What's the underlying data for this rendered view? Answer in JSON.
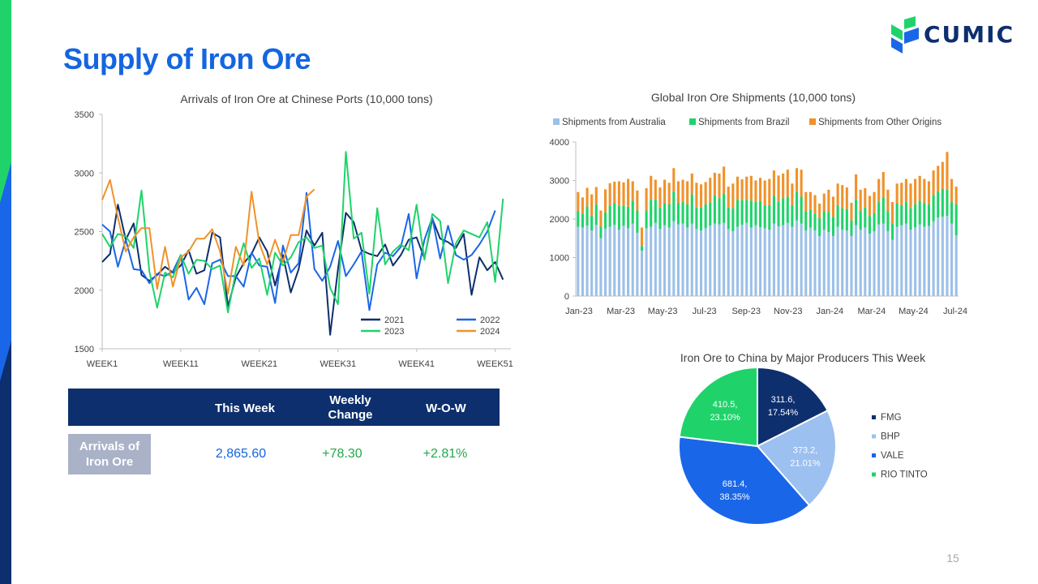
{
  "page": {
    "title": "Supply of Iron Ore",
    "logo_text": "CUMIC",
    "page_number": "15",
    "accent_colors": [
      "#1fd36a",
      "#1a66e8",
      "#0d2f6e"
    ]
  },
  "kpi_table": {
    "headers": [
      "This Week",
      "Weekly Change",
      "W-O-W"
    ],
    "row_label": "Arrivals of Iron Ore",
    "values": [
      "2,865.60",
      "+78.30",
      "+2.81%"
    ],
    "value_colors": [
      "#1565e0",
      "#22a94a",
      "#22a94a"
    ],
    "header_bg": "#0d2f6e",
    "row_label_bg": "#aab2c8"
  },
  "chart_data": [
    {
      "type": "line",
      "title": "Arrivals of Iron Ore at Chinese Ports (10,000 tons)",
      "xlabel": "",
      "ylabel": "",
      "x_tick_labels": [
        "WEEK1",
        "WEEK11",
        "WEEK21",
        "WEEK31",
        "WEEK41",
        "WEEK51"
      ],
      "x_tick_positions": [
        1,
        11,
        21,
        31,
        41,
        51
      ],
      "xlim": [
        1,
        53
      ],
      "ylim": [
        1500,
        3500
      ],
      "y_ticks": [
        1500,
        2000,
        2500,
        3000,
        3500
      ],
      "legend_position": "bottom-right",
      "grid": false,
      "series": [
        {
          "name": "2021",
          "color": "#0d2f6e",
          "values": [
            2240,
            2310,
            2730,
            2430,
            2570,
            2130,
            2080,
            2130,
            2200,
            2150,
            2210,
            2340,
            2140,
            2170,
            2490,
            2450,
            1860,
            2110,
            2230,
            2310,
            2450,
            2330,
            2040,
            2300,
            1980,
            2180,
            2510,
            2380,
            2490,
            1620,
            2180,
            2660,
            2580,
            2340,
            2310,
            2290,
            2390,
            2210,
            2300,
            2430,
            2450,
            2270,
            2610,
            2440,
            2410,
            2360,
            2480,
            1960,
            2280,
            2170,
            2240,
            2090
          ]
        },
        {
          "name": "2022",
          "color": "#1a66e8",
          "values": [
            2560,
            2500,
            2200,
            2430,
            2180,
            2170,
            2060,
            2140,
            2120,
            2160,
            2300,
            1920,
            2020,
            1880,
            2230,
            2260,
            2120,
            2120,
            2030,
            2320,
            2210,
            2200,
            1890,
            2380,
            2150,
            2230,
            2830,
            2180,
            2080,
            2200,
            2420,
            2120,
            2220,
            2330,
            1830,
            2220,
            2320,
            2290,
            2370,
            2650,
            2100,
            2430,
            2620,
            2270,
            2550,
            2300,
            2260,
            2300,
            2390,
            2500,
            2680
          ]
        },
        {
          "name": "2023",
          "color": "#1fd36a",
          "values": [
            2480,
            2370,
            2480,
            2460,
            2360,
            2850,
            2160,
            1850,
            2150,
            2110,
            2300,
            2140,
            2260,
            2250,
            2180,
            2210,
            1810,
            2160,
            2400,
            2190,
            2270,
            1960,
            2320,
            2210,
            2280,
            2410,
            2450,
            2360,
            2380,
            2020,
            1880,
            3180,
            2440,
            2490,
            1970,
            2700,
            2220,
            2330,
            2390,
            2340,
            2730,
            2260,
            2650,
            2590,
            2060,
            2400,
            2510,
            2480,
            2450,
            2580,
            2070,
            2780
          ]
        },
        {
          "name": "2024",
          "color": "#f0922a",
          "values": [
            2770,
            2940,
            2620,
            2330,
            2450,
            2530,
            2530,
            2010,
            2370,
            2030,
            2280,
            2330,
            2440,
            2440,
            2520,
            2330,
            1970,
            2370,
            2210,
            2840,
            2400,
            2220,
            2430,
            2240,
            2470,
            2470,
            2800,
            2860
          ]
        }
      ]
    },
    {
      "type": "bar",
      "stacked": true,
      "title": "Global Iron Ore Shipments (10,000 tons)",
      "xlabel": "",
      "ylabel": "",
      "x_tick_labels": [
        "Jan-23",
        "Mar-23",
        "May-23",
        "Jul-23",
        "Sep-23",
        "Nov-23",
        "Jan-24",
        "Mar-24",
        "May-24",
        "Jul-24"
      ],
      "ylim": [
        0,
        4000
      ],
      "y_ticks": [
        0,
        1000,
        2000,
        3000,
        4000
      ],
      "legend_position": "top",
      "grid": false,
      "series": [
        {
          "name": "Shipments from Australia",
          "color": "#9cc0e8",
          "values": [
            1800,
            1780,
            1830,
            1700,
            1850,
            1500,
            1750,
            1800,
            1850,
            1720,
            1830,
            1760,
            1880,
            1640,
            1180,
            1760,
            1800,
            1900,
            1740,
            1840,
            1780,
            1940,
            1860,
            1880,
            1780,
            1880,
            1740,
            1700,
            1760,
            1830,
            1880,
            1860,
            1900,
            1740,
            1680,
            1800,
            1850,
            1900,
            1780,
            1840,
            1790,
            1760,
            1720,
            1880,
            1810,
            1840,
            1900,
            1800,
            1960,
            1880,
            1700,
            1780,
            1700,
            1560,
            1720,
            1660,
            1560,
            1800,
            1720,
            1700,
            1560,
            1840,
            1720,
            1780,
            1620,
            1680,
            1860,
            1880,
            1680,
            1460,
            1800,
            1840,
            1880,
            1720,
            1780,
            1860,
            1800,
            1820,
            1940,
            2040,
            2060,
            2080,
            1880,
            1580
          ]
        },
        {
          "name": "Shipments from Brazil",
          "color": "#1fd36a",
          "values": [
            400,
            360,
            500,
            380,
            520,
            300,
            420,
            550,
            560,
            620,
            520,
            560,
            600,
            580,
            120,
            460,
            700,
            600,
            560,
            560,
            600,
            780,
            560,
            560,
            600,
            760,
            560,
            600,
            620,
            600,
            720,
            680,
            760,
            560,
            600,
            700,
            640,
            600,
            700,
            600,
            680,
            600,
            640,
            720,
            640,
            700,
            680,
            560,
            740,
            700,
            500,
            460,
            440,
            460,
            480,
            520,
            500,
            560,
            560,
            560,
            400,
            660,
            480,
            520,
            460,
            480,
            580,
            680,
            520,
            420,
            600,
            520,
            560,
            560,
            600,
            620,
            620,
            560,
            680,
            680,
            720,
            680,
            560,
            800
          ]
        },
        {
          "name": "Shipments from Other Origins",
          "color": "#f0922a",
          "values": [
            500,
            420,
            480,
            560,
            460,
            420,
            600,
            580,
            560,
            640,
            600,
            720,
            500,
            520,
            480,
            580,
            620,
            520,
            520,
            620,
            560,
            600,
            560,
            580,
            600,
            540,
            640,
            600,
            580,
            640,
            600,
            640,
            700,
            540,
            640,
            600,
            540,
            600,
            640,
            560,
            600,
            640,
            680,
            660,
            680,
            640,
            700,
            560,
            620,
            700,
            500,
            460,
            480,
            380,
            460,
            580,
            520,
            560,
            600,
            560,
            460,
            660,
            560,
            500,
            520,
            540,
            600,
            660,
            560,
            560,
            520,
            580,
            600,
            640,
            660,
            640,
            620,
            600,
            640,
            660,
            700,
            980,
            600,
            460
          ]
        }
      ]
    },
    {
      "type": "pie",
      "title": "Iron Ore to China by Major Producers This Week",
      "legend_position": "right",
      "slices": [
        {
          "name": "FMG",
          "value": 311.6,
          "percent": "17.54%",
          "color": "#0d2f6e",
          "label_color": "#ffffff"
        },
        {
          "name": "BHP",
          "value": 373.2,
          "percent": "21.01%",
          "color": "#9cc0f0",
          "label_color": "#ffffff"
        },
        {
          "name": "VALE",
          "value": 681.4,
          "percent": "38.35%",
          "color": "#1a66e8",
          "label_color": "#ffffff"
        },
        {
          "name": "RIO TINTO",
          "value": 410.5,
          "percent": "23.10%",
          "color": "#1fd36a",
          "label_color": "#ffffff"
        }
      ]
    }
  ]
}
